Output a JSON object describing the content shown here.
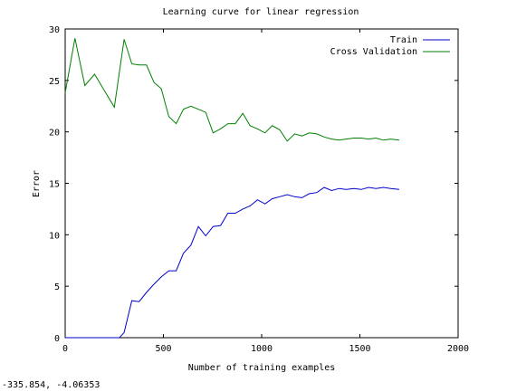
{
  "chart_data": {
    "type": "line",
    "title": "Learning curve for linear regression",
    "xlabel": "Number of training examples",
    "ylabel": "Error",
    "xlim": [
      0,
      2000
    ],
    "ylim": [
      0,
      30
    ],
    "x_ticks": [
      0,
      500,
      1000,
      1500,
      2000
    ],
    "y_ticks": [
      0,
      5,
      10,
      15,
      20,
      25,
      30
    ],
    "grid": false,
    "legend_position": "top-right",
    "series": [
      {
        "name": "Train",
        "color": "#0000cc",
        "x": [
          0,
          50,
          100,
          150,
          200,
          250,
          276,
          300,
          339,
          376,
          414,
          452,
          489,
          527,
          565,
          602,
          640,
          678,
          715,
          753,
          791,
          828,
          866,
          904,
          941,
          979,
          1017,
          1054,
          1092,
          1130,
          1168,
          1205,
          1243,
          1281,
          1318,
          1356,
          1394,
          1431,
          1469,
          1507,
          1544,
          1582,
          1620,
          1657,
          1700
        ],
        "y": [
          0,
          0,
          0,
          0,
          0,
          0,
          0,
          0.5,
          3.6,
          3.5,
          4.4,
          5.2,
          5.9,
          6.5,
          6.5,
          8.2,
          9.0,
          10.8,
          9.9,
          10.8,
          10.9,
          12.1,
          12.1,
          12.5,
          12.8,
          13.4,
          13.0,
          13.5,
          13.7,
          13.9,
          13.7,
          13.6,
          14.0,
          14.1,
          14.6,
          14.3,
          14.5,
          14.4,
          14.5,
          14.4,
          14.6,
          14.5,
          14.6,
          14.5,
          14.4
        ]
      },
      {
        "name": "Cross Validation",
        "color": "#008000",
        "x": [
          0,
          50,
          100,
          150,
          200,
          250,
          300,
          339,
          376,
          414,
          452,
          489,
          527,
          565,
          602,
          640,
          678,
          715,
          753,
          791,
          828,
          866,
          904,
          941,
          979,
          1017,
          1054,
          1092,
          1130,
          1168,
          1205,
          1243,
          1281,
          1318,
          1356,
          1394,
          1431,
          1469,
          1507,
          1544,
          1582,
          1620,
          1657,
          1700
        ],
        "y": [
          23.8,
          29.1,
          24.5,
          25.6,
          24.0,
          22.4,
          29.0,
          26.6,
          26.5,
          26.5,
          24.8,
          24.2,
          21.5,
          20.8,
          22.2,
          22.5,
          22.2,
          21.9,
          19.9,
          20.3,
          20.8,
          20.8,
          21.8,
          20.6,
          20.3,
          19.9,
          20.6,
          20.2,
          19.1,
          19.8,
          19.6,
          19.9,
          19.8,
          19.5,
          19.3,
          19.2,
          19.3,
          19.4,
          19.4,
          19.3,
          19.4,
          19.2,
          19.3,
          19.2
        ]
      }
    ]
  },
  "status": {
    "coordinate_readout": "-335.854, -4.06353"
  }
}
